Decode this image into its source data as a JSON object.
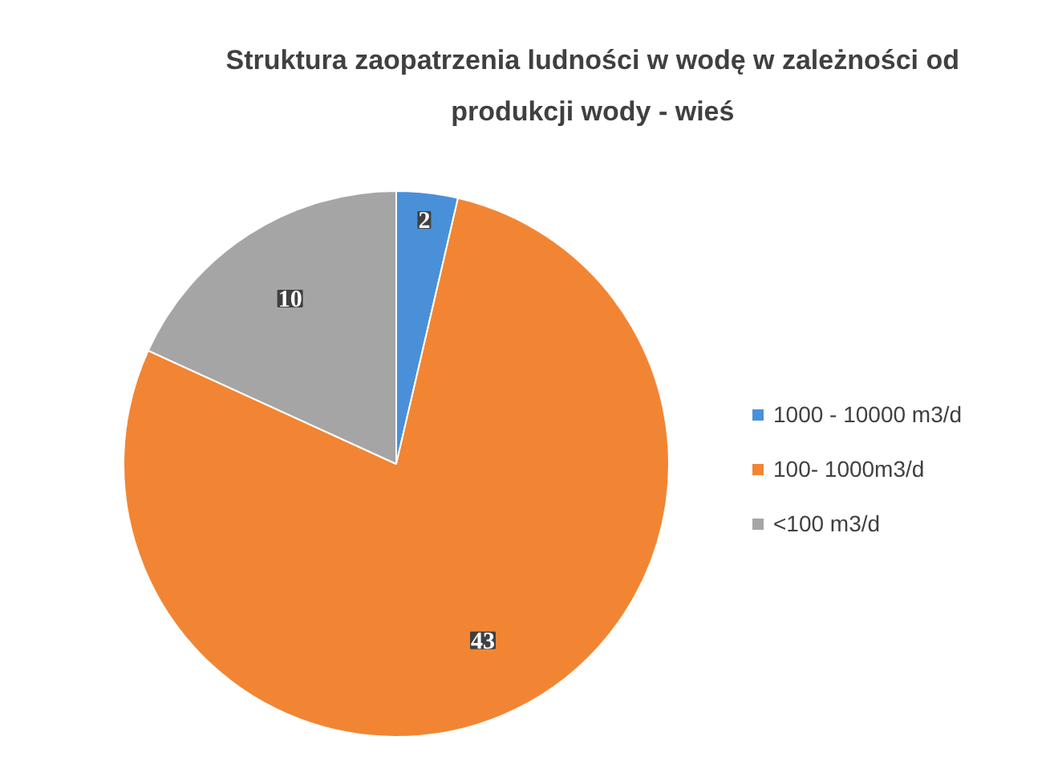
{
  "chart_data": {
    "type": "pie",
    "title": "Struktura zaopatrzenia ludności w wodę w zależności od\nprodukcji wody - wieś",
    "categories": [
      "1000 - 10000 m3/d",
      "100- 1000m3/d",
      "<100 m3/d"
    ],
    "values": [
      2,
      43,
      10
    ],
    "colors": [
      "#4a90d9",
      "#f28533",
      "#a5a5a5"
    ],
    "data_labels": true,
    "legend": "right"
  }
}
